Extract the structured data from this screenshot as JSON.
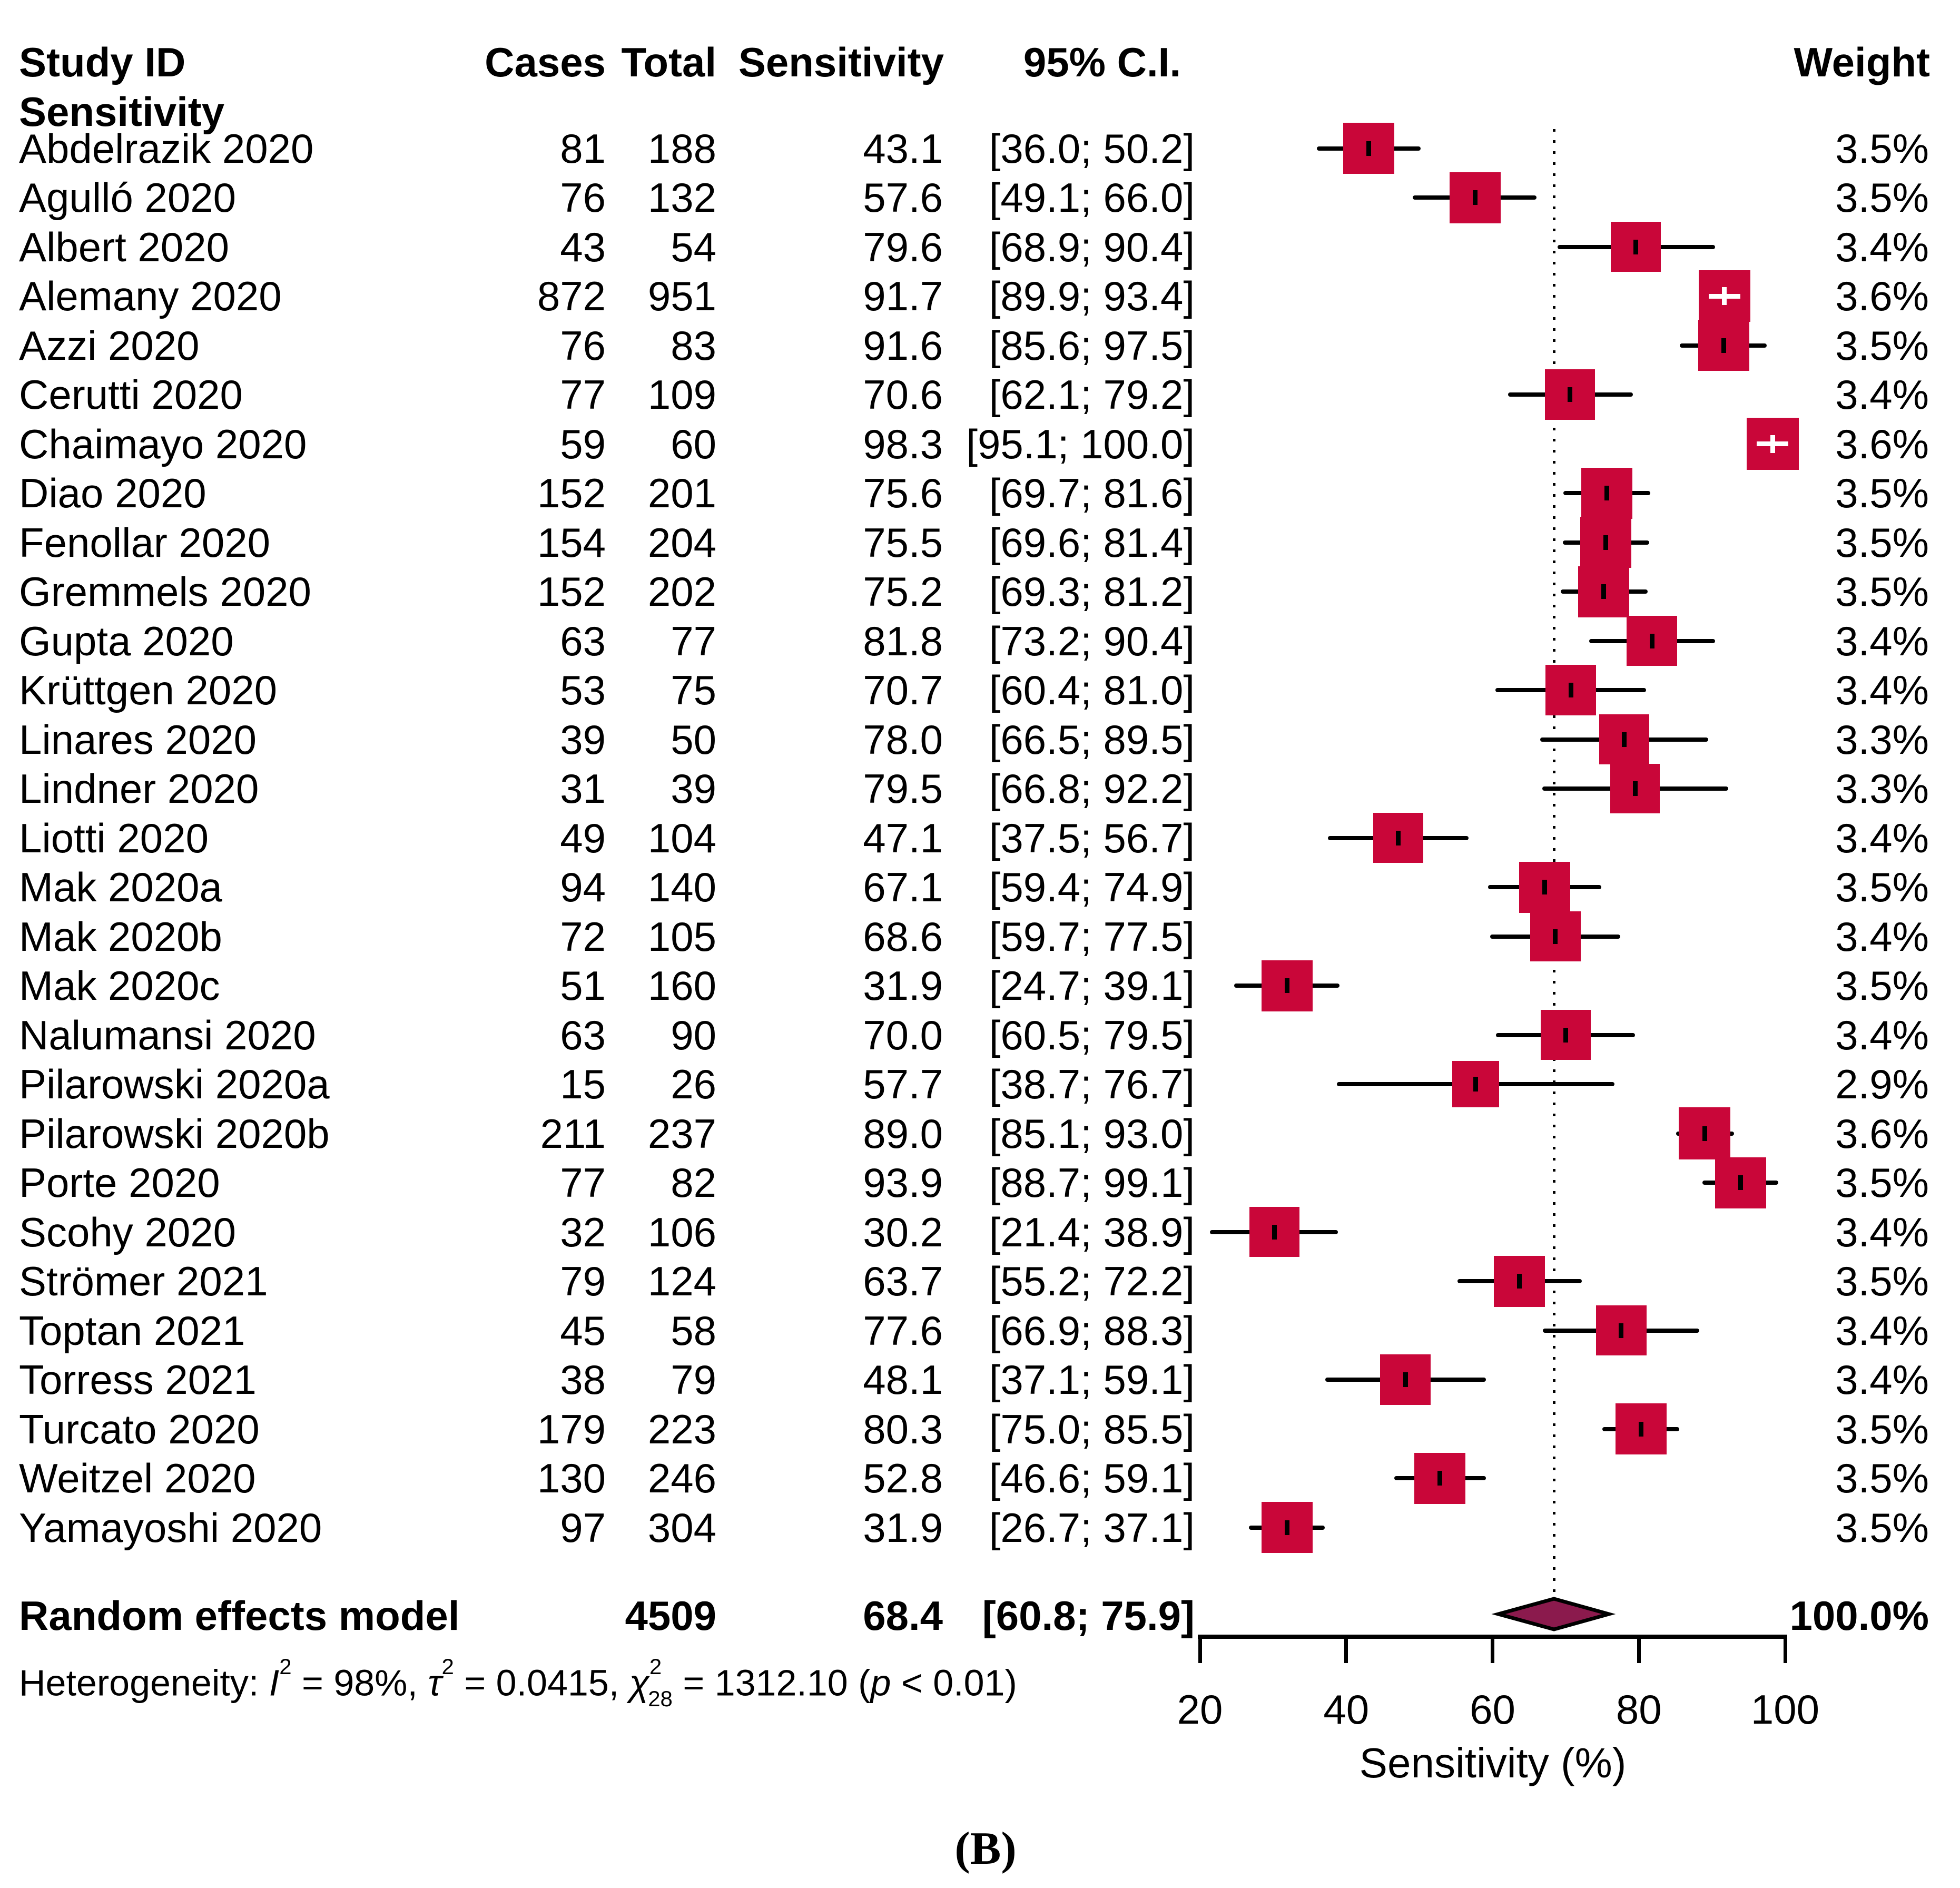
{
  "header": {
    "study_id": "Study ID",
    "cases": "Cases",
    "total": "Total",
    "sensitivity": "Sensitivity",
    "ci": "95% C.I.",
    "weight": "Weight",
    "subgroup": "Sensitivity"
  },
  "heterogeneity": {
    "segments": [
      {
        "text": "Heterogeneity: "
      },
      {
        "text": "I",
        "italic": true
      },
      {
        "text": "2",
        "sup": true
      },
      {
        "text": " = 98%, "
      },
      {
        "text": "τ",
        "italic": true
      },
      {
        "text": "2",
        "sup": true
      },
      {
        "text": " = 0.0415, "
      },
      {
        "text": "χ",
        "italic": true
      },
      {
        "text": "2",
        "sup": true
      },
      {
        "text": "28",
        "sub": true,
        "tuck": true
      },
      {
        "text": " = 1312.10 ("
      },
      {
        "text": "p",
        "italic": true
      },
      {
        "text": " < 0.01)"
      }
    ]
  },
  "panel_label": "(B)",
  "colors": {
    "square": "#C90639",
    "diamond": "#8B1A4D",
    "line": "#000000",
    "white_marker": "#ffffff"
  },
  "chart_data": {
    "type": "forest",
    "x_axis": {
      "label": "Sensitivity (%)",
      "ticks": [
        20,
        40,
        60,
        80,
        100
      ],
      "range": [
        20,
        100
      ]
    },
    "reference_line": 68.4,
    "legend_note": "square size proportional to weight; diamond = pooled random effects estimate",
    "studies": [
      {
        "name": "Abdelrazik 2020",
        "cases": "81",
        "total": "188",
        "estimate": "43.1",
        "ci_lo": "36.0",
        "ci_hi": "50.2",
        "weight": "3.5%"
      },
      {
        "name": "Agulló 2020",
        "cases": "76",
        "total": "132",
        "estimate": "57.6",
        "ci_lo": "49.1",
        "ci_hi": "66.0",
        "weight": "3.5%"
      },
      {
        "name": "Albert 2020",
        "cases": "43",
        "total": "54",
        "estimate": "79.6",
        "ci_lo": "68.9",
        "ci_hi": "90.4",
        "weight": "3.4%"
      },
      {
        "name": "Alemany 2020",
        "cases": "872",
        "total": "951",
        "estimate": "91.7",
        "ci_lo": "89.9",
        "ci_hi": "93.4",
        "weight": "3.6%"
      },
      {
        "name": "Azzi 2020",
        "cases": "76",
        "total": "83",
        "estimate": "91.6",
        "ci_lo": "85.6",
        "ci_hi": "97.5",
        "weight": "3.5%"
      },
      {
        "name": "Cerutti 2020",
        "cases": "77",
        "total": "109",
        "estimate": "70.6",
        "ci_lo": "62.1",
        "ci_hi": "79.2",
        "weight": "3.4%"
      },
      {
        "name": "Chaimayo 2020",
        "cases": "59",
        "total": "60",
        "estimate": "98.3",
        "ci_lo": "95.1",
        "ci_hi": "100.0",
        "weight": "3.6%"
      },
      {
        "name": "Diao 2020",
        "cases": "152",
        "total": "201",
        "estimate": "75.6",
        "ci_lo": "69.7",
        "ci_hi": "81.6",
        "weight": "3.5%"
      },
      {
        "name": "Fenollar 2020",
        "cases": "154",
        "total": "204",
        "estimate": "75.5",
        "ci_lo": "69.6",
        "ci_hi": "81.4",
        "weight": "3.5%"
      },
      {
        "name": "Gremmels 2020",
        "cases": "152",
        "total": "202",
        "estimate": "75.2",
        "ci_lo": "69.3",
        "ci_hi": "81.2",
        "weight": "3.5%"
      },
      {
        "name": "Gupta 2020",
        "cases": "63",
        "total": "77",
        "estimate": "81.8",
        "ci_lo": "73.2",
        "ci_hi": "90.4",
        "weight": "3.4%"
      },
      {
        "name": "Krüttgen 2020",
        "cases": "53",
        "total": "75",
        "estimate": "70.7",
        "ci_lo": "60.4",
        "ci_hi": "81.0",
        "weight": "3.4%"
      },
      {
        "name": "Linares 2020",
        "cases": "39",
        "total": "50",
        "estimate": "78.0",
        "ci_lo": "66.5",
        "ci_hi": "89.5",
        "weight": "3.3%"
      },
      {
        "name": "Lindner 2020",
        "cases": "31",
        "total": "39",
        "estimate": "79.5",
        "ci_lo": "66.8",
        "ci_hi": "92.2",
        "weight": "3.3%"
      },
      {
        "name": "Liotti 2020",
        "cases": "49",
        "total": "104",
        "estimate": "47.1",
        "ci_lo": "37.5",
        "ci_hi": "56.7",
        "weight": "3.4%"
      },
      {
        "name": "Mak 2020a",
        "cases": "94",
        "total": "140",
        "estimate": "67.1",
        "ci_lo": "59.4",
        "ci_hi": "74.9",
        "weight": "3.5%"
      },
      {
        "name": "Mak 2020b",
        "cases": "72",
        "total": "105",
        "estimate": "68.6",
        "ci_lo": "59.7",
        "ci_hi": "77.5",
        "weight": "3.4%"
      },
      {
        "name": "Mak 2020c",
        "cases": "51",
        "total": "160",
        "estimate": "31.9",
        "ci_lo": "24.7",
        "ci_hi": "39.1",
        "weight": "3.5%"
      },
      {
        "name": "Nalumansi 2020",
        "cases": "63",
        "total": "90",
        "estimate": "70.0",
        "ci_lo": "60.5",
        "ci_hi": "79.5",
        "weight": "3.4%"
      },
      {
        "name": "Pilarowski 2020a",
        "cases": "15",
        "total": "26",
        "estimate": "57.7",
        "ci_lo": "38.7",
        "ci_hi": "76.7",
        "weight": "2.9%"
      },
      {
        "name": "Pilarowski 2020b",
        "cases": "211",
        "total": "237",
        "estimate": "89.0",
        "ci_lo": "85.1",
        "ci_hi": "93.0",
        "weight": "3.6%"
      },
      {
        "name": "Porte 2020",
        "cases": "77",
        "total": "82",
        "estimate": "93.9",
        "ci_lo": "88.7",
        "ci_hi": "99.1",
        "weight": "3.5%"
      },
      {
        "name": "Scohy 2020",
        "cases": "32",
        "total": "106",
        "estimate": "30.2",
        "ci_lo": "21.4",
        "ci_hi": "38.9",
        "weight": "3.4%"
      },
      {
        "name": "Strömer 2021",
        "cases": "79",
        "total": "124",
        "estimate": "63.7",
        "ci_lo": "55.2",
        "ci_hi": "72.2",
        "weight": "3.5%"
      },
      {
        "name": "Toptan 2021",
        "cases": "45",
        "total": "58",
        "estimate": "77.6",
        "ci_lo": "66.9",
        "ci_hi": "88.3",
        "weight": "3.4%"
      },
      {
        "name": "Torress 2021",
        "cases": "38",
        "total": "79",
        "estimate": "48.1",
        "ci_lo": "37.1",
        "ci_hi": "59.1",
        "weight": "3.4%"
      },
      {
        "name": "Turcato 2020",
        "cases": "179",
        "total": "223",
        "estimate": "80.3",
        "ci_lo": "75.0",
        "ci_hi": "85.5",
        "weight": "3.5%"
      },
      {
        "name": "Weitzel 2020",
        "cases": "130",
        "total": "246",
        "estimate": "52.8",
        "ci_lo": "46.6",
        "ci_hi": "59.1",
        "weight": "3.5%"
      },
      {
        "name": "Yamayoshi 2020",
        "cases": "97",
        "total": "304",
        "estimate": "31.9",
        "ci_lo": "26.7",
        "ci_hi": "37.1",
        "weight": "3.5%"
      }
    ],
    "pooled": {
      "name": "Random effects model",
      "total": "4509",
      "estimate": "68.4",
      "ci_lo": "60.8",
      "ci_hi": "75.9",
      "weight": "100.0%"
    }
  }
}
